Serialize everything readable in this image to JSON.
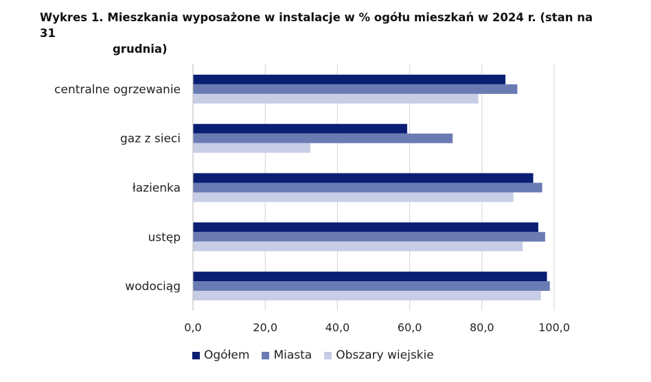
{
  "chart_data": {
    "type": "bar",
    "orientation": "horizontal",
    "title_line1": "Wykres 1. Mieszkania wyposażone w instalacje w % ogółu mieszkań w 2024 r. (stan na 31",
    "title_line2": "grudnia)",
    "categories": [
      "centralne ogrzewanie",
      "gaz z sieci",
      "łazienka",
      "ustęp",
      "wodociąg"
    ],
    "series": [
      {
        "name": "Ogółem",
        "color": "#0a1f73",
        "values": [
          86.5,
          59.3,
          94.2,
          95.6,
          98.0
        ]
      },
      {
        "name": "Miasta",
        "color": "#6a7bb4",
        "values": [
          89.8,
          71.9,
          96.7,
          97.5,
          98.8
        ]
      },
      {
        "name": "Obszary wiejskie",
        "color": "#c8cde6",
        "values": [
          79.0,
          32.5,
          88.7,
          91.3,
          96.3
        ]
      }
    ],
    "xlim": [
      0,
      100
    ],
    "xticks": [
      "0,0",
      "20,0",
      "40,0",
      "60,0",
      "80,0",
      "100,0"
    ],
    "grid": true,
    "legend_position": "bottom"
  }
}
